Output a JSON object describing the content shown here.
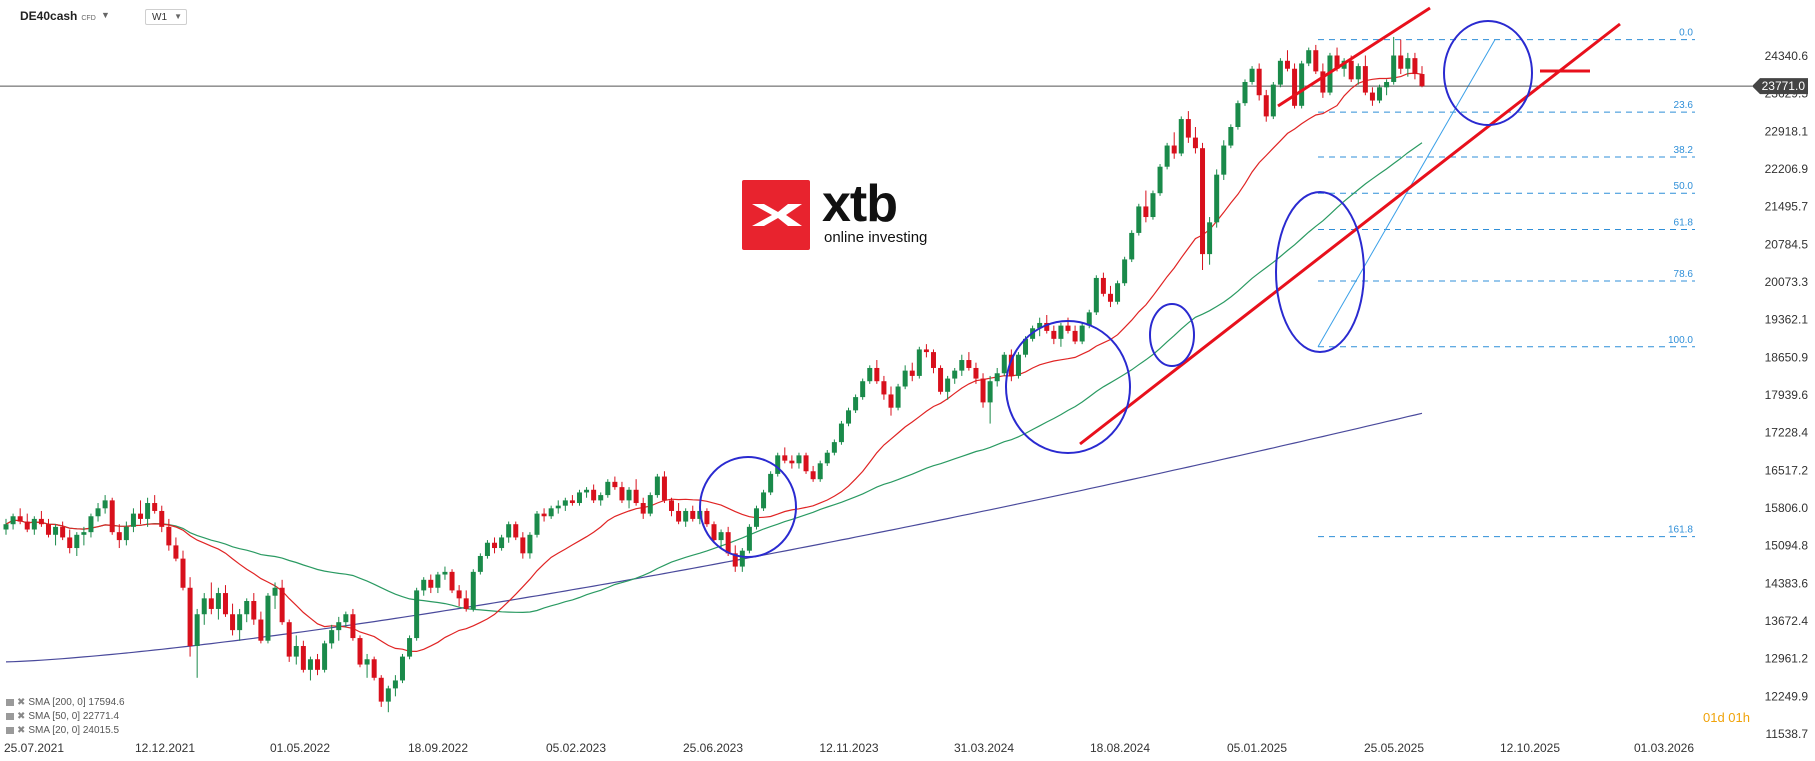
{
  "header": {
    "symbol": "DE40cash",
    "symbol_tag": "CFD",
    "timeframe": "W1"
  },
  "legend": [
    "SMA [200, 0] 17594.6",
    "SMA [50, 0] 22771.4",
    "SMA [20, 0] 24015.5"
  ],
  "countdown": "01d 01h",
  "logo": {
    "word": "xtb",
    "sub": "online investing"
  },
  "colors": {
    "bull": "#1a8a4a",
    "bear": "#d8101c",
    "sma20": "#e02424",
    "sma50": "#2a9a62",
    "sma200": "#4a4a9c",
    "fib": "#2f8fd8",
    "circle": "#2a2ad0",
    "trend": "#e8101c"
  },
  "chart_data": {
    "type": "candlestick",
    "x_labels": [
      "25.07.2021",
      "12.12.2021",
      "01.05.2022",
      "18.09.2022",
      "05.02.2023",
      "25.06.2023",
      "12.11.2023",
      "31.03.2024",
      "18.08.2024",
      "05.01.2025",
      "25.05.2025",
      "12.10.2025",
      "01.03.2026"
    ],
    "y_ticks": [
      "24340.6",
      "23629.5",
      "22918.1",
      "22206.9",
      "21495.7",
      "20784.5",
      "20073.3",
      "19362.1",
      "18650.9",
      "17939.6",
      "17228.4",
      "16517.2",
      "15806.0",
      "15094.8",
      "14383.6",
      "13672.4",
      "12961.2",
      "12249.9",
      "11538.7"
    ],
    "current_price": "23771.0",
    "fibonacci": {
      "levels": [
        "0.0",
        "23.6",
        "38.2",
        "50.0",
        "61.8",
        "78.6",
        "100.0",
        "161.8"
      ],
      "high": 24650,
      "low": 18850
    },
    "candles": [
      [
        15400,
        15600,
        15300,
        15500
      ],
      [
        15500,
        15700,
        15400,
        15650
      ],
      [
        15650,
        15800,
        15500,
        15550
      ],
      [
        15550,
        15700,
        15350,
        15400
      ],
      [
        15400,
        15650,
        15300,
        15600
      ],
      [
        15600,
        15750,
        15450,
        15500
      ],
      [
        15500,
        15600,
        15250,
        15300
      ],
      [
        15300,
        15500,
        15100,
        15450
      ],
      [
        15450,
        15550,
        15200,
        15250
      ],
      [
        15250,
        15400,
        14950,
        15050
      ],
      [
        15050,
        15350,
        14900,
        15300
      ],
      [
        15300,
        15450,
        15100,
        15350
      ],
      [
        15350,
        15700,
        15250,
        15650
      ],
      [
        15650,
        15900,
        15550,
        15800
      ],
      [
        15800,
        16050,
        15700,
        15950
      ],
      [
        15950,
        16000,
        15300,
        15350
      ],
      [
        15350,
        15500,
        15050,
        15200
      ],
      [
        15200,
        15550,
        15100,
        15450
      ],
      [
        15450,
        15800,
        15350,
        15700
      ],
      [
        15700,
        15950,
        15500,
        15600
      ],
      [
        15600,
        16000,
        15450,
        15900
      ],
      [
        15900,
        16050,
        15700,
        15750
      ],
      [
        15750,
        15850,
        15350,
        15450
      ],
      [
        15450,
        15600,
        15000,
        15100
      ],
      [
        15100,
        15250,
        14800,
        14850
      ],
      [
        14850,
        15000,
        14250,
        14300
      ],
      [
        14300,
        14500,
        13000,
        13200
      ],
      [
        13200,
        13900,
        12600,
        13800
      ],
      [
        13800,
        14200,
        13600,
        14100
      ],
      [
        14100,
        14400,
        13800,
        13900
      ],
      [
        13900,
        14300,
        13700,
        14200
      ],
      [
        14200,
        14350,
        13750,
        13800
      ],
      [
        13800,
        14000,
        13400,
        13500
      ],
      [
        13500,
        13900,
        13300,
        13800
      ],
      [
        13800,
        14100,
        13650,
        14050
      ],
      [
        14050,
        14200,
        13600,
        13700
      ],
      [
        13700,
        13850,
        13250,
        13300
      ],
      [
        13300,
        14200,
        13250,
        14150
      ],
      [
        14150,
        14400,
        13900,
        14300
      ],
      [
        14300,
        14450,
        13600,
        13650
      ],
      [
        13650,
        13700,
        12900,
        13000
      ],
      [
        13000,
        13400,
        12850,
        13200
      ],
      [
        13200,
        13300,
        12700,
        12750
      ],
      [
        12750,
        13000,
        12550,
        12950
      ],
      [
        12950,
        13050,
        12650,
        12750
      ],
      [
        12750,
        13300,
        12700,
        13250
      ],
      [
        13250,
        13600,
        13150,
        13500
      ],
      [
        13500,
        13750,
        13300,
        13650
      ],
      [
        13650,
        13850,
        13550,
        13800
      ],
      [
        13800,
        13900,
        13300,
        13350
      ],
      [
        13350,
        13400,
        12800,
        12850
      ],
      [
        12850,
        13050,
        12600,
        12950
      ],
      [
        12950,
        13000,
        12550,
        12600
      ],
      [
        12600,
        12650,
        12050,
        12150
      ],
      [
        12150,
        12450,
        11950,
        12400
      ],
      [
        12400,
        12650,
        12250,
        12550
      ],
      [
        12550,
        13050,
        12500,
        13000
      ],
      [
        13000,
        13400,
        12950,
        13350
      ],
      [
        13350,
        14300,
        13300,
        14250
      ],
      [
        14250,
        14500,
        14150,
        14450
      ],
      [
        14450,
        14550,
        14200,
        14300
      ],
      [
        14300,
        14600,
        14200,
        14550
      ],
      [
        14550,
        14700,
        14450,
        14600
      ],
      [
        14600,
        14650,
        14200,
        14250
      ],
      [
        14250,
        14350,
        13950,
        14100
      ],
      [
        14100,
        14250,
        13850,
        13900
      ],
      [
        13900,
        14650,
        13850,
        14600
      ],
      [
        14600,
        14950,
        14550,
        14900
      ],
      [
        14900,
        15200,
        14850,
        15150
      ],
      [
        15150,
        15250,
        14950,
        15050
      ],
      [
        15050,
        15300,
        15000,
        15250
      ],
      [
        15250,
        15550,
        15150,
        15500
      ],
      [
        15500,
        15550,
        15200,
        15250
      ],
      [
        15250,
        15350,
        14850,
        14950
      ],
      [
        14950,
        15350,
        14850,
        15300
      ],
      [
        15300,
        15750,
        15250,
        15700
      ],
      [
        15700,
        15800,
        15550,
        15650
      ],
      [
        15650,
        15850,
        15600,
        15800
      ],
      [
        15800,
        15950,
        15700,
        15850
      ],
      [
        15850,
        16000,
        15750,
        15950
      ],
      [
        15950,
        16050,
        15850,
        15900
      ],
      [
        15900,
        16150,
        15850,
        16100
      ],
      [
        16100,
        16200,
        16000,
        16150
      ],
      [
        16150,
        16250,
        15900,
        15950
      ],
      [
        15950,
        16100,
        15850,
        16050
      ],
      [
        16050,
        16350,
        16000,
        16300
      ],
      [
        16300,
        16400,
        16150,
        16200
      ],
      [
        16200,
        16300,
        15900,
        15950
      ],
      [
        15950,
        16200,
        15800,
        16150
      ],
      [
        16150,
        16350,
        15850,
        15900
      ],
      [
        15900,
        16000,
        15600,
        15700
      ],
      [
        15700,
        16100,
        15650,
        16050
      ],
      [
        16050,
        16450,
        16000,
        16400
      ],
      [
        16400,
        16500,
        15900,
        15950
      ],
      [
        15950,
        16000,
        15650,
        15750
      ],
      [
        15750,
        15900,
        15500,
        15550
      ],
      [
        15550,
        15800,
        15450,
        15750
      ],
      [
        15750,
        15850,
        15550,
        15600
      ],
      [
        15600,
        15800,
        15500,
        15750
      ],
      [
        15750,
        15800,
        15450,
        15500
      ],
      [
        15500,
        15550,
        15150,
        15200
      ],
      [
        15200,
        15400,
        15050,
        15350
      ],
      [
        15350,
        15450,
        14900,
        14950
      ],
      [
        14950,
        15100,
        14600,
        14700
      ],
      [
        14700,
        15050,
        14600,
        15000
      ],
      [
        15000,
        15500,
        14950,
        15450
      ],
      [
        15450,
        15850,
        15400,
        15800
      ],
      [
        15800,
        16150,
        15750,
        16100
      ],
      [
        16100,
        16500,
        16050,
        16450
      ],
      [
        16450,
        16850,
        16400,
        16800
      ],
      [
        16800,
        16950,
        16650,
        16700
      ],
      [
        16700,
        16800,
        16550,
        16650
      ],
      [
        16650,
        16850,
        16550,
        16800
      ],
      [
        16800,
        16850,
        16450,
        16500
      ],
      [
        16500,
        16600,
        16300,
        16350
      ],
      [
        16350,
        16700,
        16300,
        16650
      ],
      [
        16650,
        16900,
        16600,
        16850
      ],
      [
        16850,
        17100,
        16800,
        17050
      ],
      [
        17050,
        17450,
        17000,
        17400
      ],
      [
        17400,
        17700,
        17350,
        17650
      ],
      [
        17650,
        17950,
        17600,
        17900
      ],
      [
        17900,
        18250,
        17850,
        18200
      ],
      [
        18200,
        18500,
        18150,
        18450
      ],
      [
        18450,
        18600,
        18150,
        18200
      ],
      [
        18200,
        18300,
        17850,
        17950
      ],
      [
        17950,
        18100,
        17550,
        17700
      ],
      [
        17700,
        18150,
        17650,
        18100
      ],
      [
        18100,
        18500,
        18050,
        18400
      ],
      [
        18400,
        18550,
        18200,
        18300
      ],
      [
        18300,
        18850,
        18250,
        18800
      ],
      [
        18800,
        18900,
        18650,
        18750
      ],
      [
        18750,
        18800,
        18350,
        18450
      ],
      [
        18450,
        18500,
        17950,
        18000
      ],
      [
        18000,
        18300,
        17850,
        18250
      ],
      [
        18250,
        18450,
        18150,
        18400
      ],
      [
        18400,
        18700,
        18300,
        18600
      ],
      [
        18600,
        18750,
        18400,
        18450
      ],
      [
        18450,
        18550,
        18150,
        18250
      ],
      [
        18250,
        18350,
        17700,
        17800
      ],
      [
        17800,
        18300,
        17400,
        18200
      ],
      [
        18200,
        18450,
        18100,
        18350
      ],
      [
        18350,
        18750,
        18300,
        18700
      ],
      [
        18700,
        18800,
        18200,
        18300
      ],
      [
        18300,
        18750,
        18250,
        18700
      ],
      [
        18700,
        19050,
        18650,
        19000
      ],
      [
        19000,
        19250,
        18950,
        19200
      ],
      [
        19200,
        19400,
        19050,
        19300
      ],
      [
        19300,
        19450,
        19100,
        19150
      ],
      [
        19150,
        19250,
        18900,
        19000
      ],
      [
        19000,
        19300,
        18850,
        19250
      ],
      [
        19250,
        19400,
        19100,
        19150
      ],
      [
        19150,
        19250,
        18900,
        18950
      ],
      [
        18950,
        19300,
        18900,
        19250
      ],
      [
        19250,
        19550,
        19200,
        19500
      ],
      [
        19500,
        20200,
        19450,
        20150
      ],
      [
        20150,
        20250,
        19800,
        19850
      ],
      [
        19850,
        20000,
        19600,
        19700
      ],
      [
        19700,
        20100,
        19650,
        20050
      ],
      [
        20050,
        20550,
        20000,
        20500
      ],
      [
        20500,
        21050,
        20450,
        21000
      ],
      [
        21000,
        21550,
        20950,
        21500
      ],
      [
        21500,
        21800,
        21200,
        21300
      ],
      [
        21300,
        21800,
        21250,
        21750
      ],
      [
        21750,
        22300,
        21700,
        22250
      ],
      [
        22250,
        22700,
        22200,
        22650
      ],
      [
        22650,
        22900,
        22400,
        22500
      ],
      [
        22500,
        23200,
        22450,
        23150
      ],
      [
        23150,
        23300,
        22700,
        22800
      ],
      [
        22800,
        23000,
        22500,
        22600
      ],
      [
        22600,
        22700,
        20300,
        20600
      ],
      [
        20600,
        21300,
        20400,
        21200
      ],
      [
        21200,
        22200,
        21100,
        22100
      ],
      [
        22100,
        22750,
        22000,
        22650
      ],
      [
        22650,
        23050,
        22600,
        23000
      ],
      [
        23000,
        23500,
        22950,
        23450
      ],
      [
        23450,
        23900,
        23400,
        23850
      ],
      [
        23850,
        24150,
        23800,
        24100
      ],
      [
        24100,
        24200,
        23500,
        23600
      ],
      [
        23600,
        23700,
        23100,
        23200
      ],
      [
        23200,
        23850,
        23150,
        23800
      ],
      [
        23800,
        24300,
        23750,
        24250
      ],
      [
        24250,
        24450,
        24050,
        24100
      ],
      [
        24100,
        24200,
        23350,
        23400
      ],
      [
        23400,
        24250,
        23350,
        24200
      ],
      [
        24200,
        24500,
        24150,
        24450
      ],
      [
        24450,
        24550,
        24000,
        24050
      ],
      [
        24050,
        24200,
        23550,
        23650
      ],
      [
        23650,
        24400,
        23600,
        24350
      ],
      [
        24350,
        24500,
        24050,
        24100
      ],
      [
        24100,
        24300,
        23950,
        24250
      ],
      [
        24250,
        24350,
        23850,
        23900
      ],
      [
        23900,
        24200,
        23800,
        24150
      ],
      [
        24150,
        24350,
        23600,
        23650
      ],
      [
        23650,
        23750,
        23400,
        23500
      ],
      [
        23500,
        23800,
        23450,
        23750
      ],
      [
        23750,
        23900,
        23600,
        23850
      ],
      [
        23850,
        24700,
        23800,
        24350
      ],
      [
        24350,
        24650,
        24000,
        24100
      ],
      [
        24100,
        24400,
        23950,
        24300
      ],
      [
        24300,
        24400,
        23900,
        24000
      ],
      [
        24000,
        24150,
        23750,
        23771
      ]
    ]
  }
}
